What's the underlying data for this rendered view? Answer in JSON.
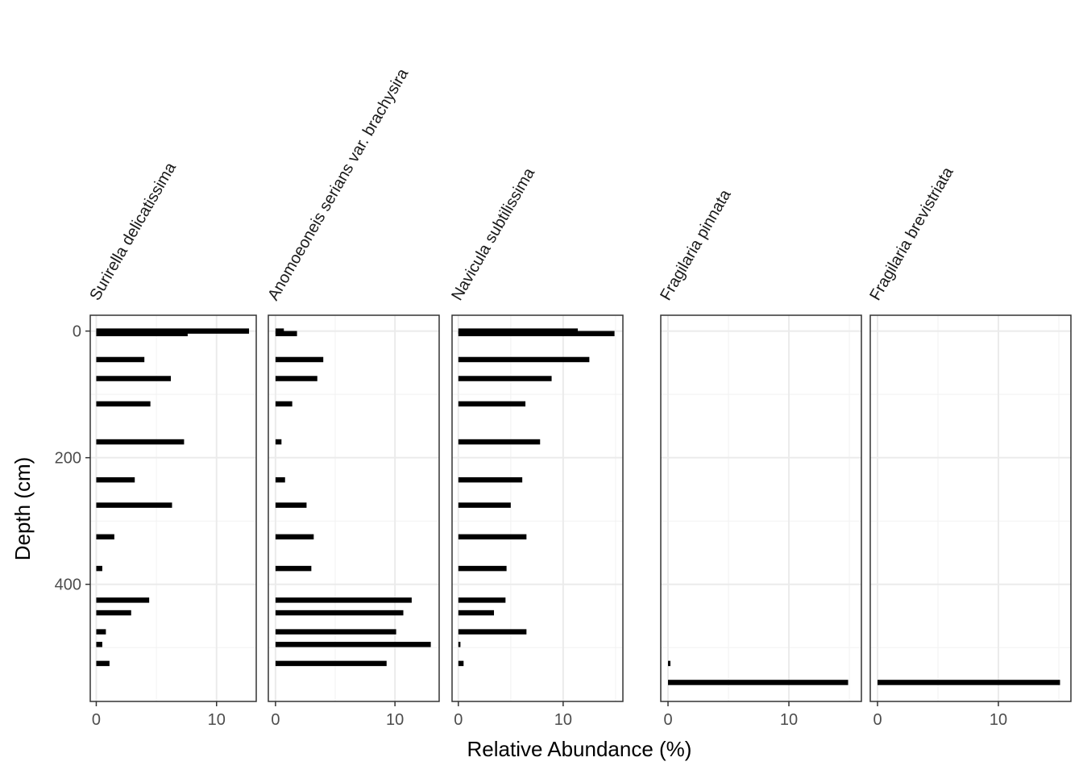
{
  "chart_data": {
    "type": "bar",
    "orientation": "horizontal",
    "xlabel": "Relative Abundance (%)",
    "ylabel": "Depth (cm)",
    "y_reversed": true,
    "ylim": [
      -25,
      585
    ],
    "yticks": [
      0,
      200,
      400
    ],
    "xticks": [
      0,
      10
    ],
    "grid": true,
    "panels": [
      {
        "name": "Surirella delicatissima",
        "xlim": [
          -0.5,
          13.3
        ],
        "bars": [
          {
            "depth": 0,
            "value": 12.7
          },
          {
            "depth": 4,
            "value": 7.6
          },
          {
            "depth": 45,
            "value": 4.0
          },
          {
            "depth": 75,
            "value": 6.2
          },
          {
            "depth": 115,
            "value": 4.5
          },
          {
            "depth": 175,
            "value": 7.3
          },
          {
            "depth": 235,
            "value": 3.2
          },
          {
            "depth": 275,
            "value": 6.3
          },
          {
            "depth": 325,
            "value": 1.5
          },
          {
            "depth": 375,
            "value": 0.5
          },
          {
            "depth": 425,
            "value": 4.4
          },
          {
            "depth": 445,
            "value": 2.9
          },
          {
            "depth": 475,
            "value": 0.8
          },
          {
            "depth": 495,
            "value": 0.5
          },
          {
            "depth": 525,
            "value": 1.1
          }
        ]
      },
      {
        "name": "Anomoeoneis serians var. brachysira",
        "xlim": [
          -0.6,
          13.7
        ],
        "bars": [
          {
            "depth": 0,
            "value": 0.7
          },
          {
            "depth": 4,
            "value": 1.8
          },
          {
            "depth": 45,
            "value": 4.0
          },
          {
            "depth": 75,
            "value": 3.5
          },
          {
            "depth": 115,
            "value": 1.4
          },
          {
            "depth": 175,
            "value": 0.5
          },
          {
            "depth": 235,
            "value": 0.8
          },
          {
            "depth": 275,
            "value": 2.6
          },
          {
            "depth": 325,
            "value": 3.2
          },
          {
            "depth": 375,
            "value": 3.0
          },
          {
            "depth": 425,
            "value": 11.4
          },
          {
            "depth": 445,
            "value": 10.7
          },
          {
            "depth": 475,
            "value": 10.1
          },
          {
            "depth": 495,
            "value": 13.0
          },
          {
            "depth": 525,
            "value": 9.3
          }
        ]
      },
      {
        "name": "Navicula subtilissima",
        "xlim": [
          -0.6,
          15.7
        ],
        "bars": [
          {
            "depth": 0,
            "value": 11.4
          },
          {
            "depth": 4,
            "value": 14.9
          },
          {
            "depth": 45,
            "value": 12.5
          },
          {
            "depth": 75,
            "value": 8.9
          },
          {
            "depth": 115,
            "value": 6.4
          },
          {
            "depth": 175,
            "value": 7.8
          },
          {
            "depth": 235,
            "value": 6.1
          },
          {
            "depth": 275,
            "value": 5.0
          },
          {
            "depth": 325,
            "value": 6.5
          },
          {
            "depth": 375,
            "value": 4.6
          },
          {
            "depth": 425,
            "value": 4.5
          },
          {
            "depth": 445,
            "value": 3.4
          },
          {
            "depth": 475,
            "value": 6.5
          },
          {
            "depth": 495,
            "value": 0.2
          },
          {
            "depth": 525,
            "value": 0.5
          }
        ]
      },
      {
        "name": "Fragilaria pinnata",
        "xlim": [
          -0.6,
          16.0
        ],
        "bars": [
          {
            "depth": 525,
            "value": 0.2
          },
          {
            "depth": 555,
            "value": 14.9
          }
        ]
      },
      {
        "name": "Fragilaria brevistriata",
        "xlim": [
          -0.6,
          16.0
        ],
        "bars": [
          {
            "depth": 555,
            "value": 15.1
          }
        ]
      }
    ]
  }
}
